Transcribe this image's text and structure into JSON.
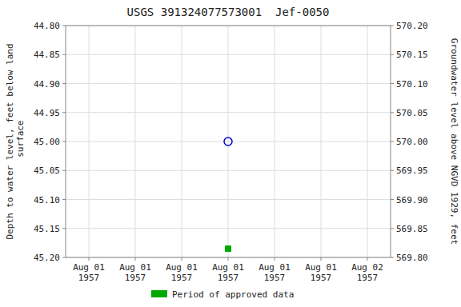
{
  "chart_data": {
    "type": "scatter",
    "title": "USGS 391324077573001  Jef-0050",
    "y_label": "Depth to water level, feet below land\n surface",
    "y2_label": "Groundwater level above NGVD 1929, feet",
    "categories": [
      "Aug 01\n1957",
      "Aug 01\n1957",
      "Aug 01\n1957",
      "Aug 01\n1957",
      "Aug 01\n1957",
      "Aug 01\n1957",
      "Aug 02\n1957"
    ],
    "series": [
      {
        "color": "#0000cc",
        "marker": "circle",
        "values": [
          null,
          null,
          null,
          45.0,
          null,
          null,
          null
        ]
      },
      {
        "name": "Period of approved data",
        "color": "#00aa00",
        "marker": "square",
        "values": [
          null,
          null,
          null,
          45.185,
          null,
          null,
          null
        ]
      }
    ],
    "ylim": [
      45.2,
      44.8
    ],
    "yticks": [
      {
        "value": 44.8,
        "label": "44.80"
      },
      44.85,
      {
        "value": 44.9,
        "label": "44.90"
      },
      44.95,
      {
        "value": 45.0,
        "label": "45.00"
      },
      45.05,
      {
        "value": 45.1,
        "label": "45.10"
      },
      45.15,
      {
        "value": 45.2,
        "label": "45.20"
      }
    ],
    "y2lim": [
      569.8,
      570.2
    ],
    "y2ticks": [
      {
        "value": 570.2,
        "label": "570.20"
      },
      570.15,
      {
        "value": 570.1,
        "label": "570.10"
      },
      570.05,
      {
        "value": 570.0,
        "label": "570.00"
      },
      569.95,
      {
        "value": 569.9,
        "label": "569.90"
      },
      569.85,
      {
        "value": 569.8,
        "label": "569.80"
      }
    ],
    "grid": true,
    "legend": "bottom"
  }
}
